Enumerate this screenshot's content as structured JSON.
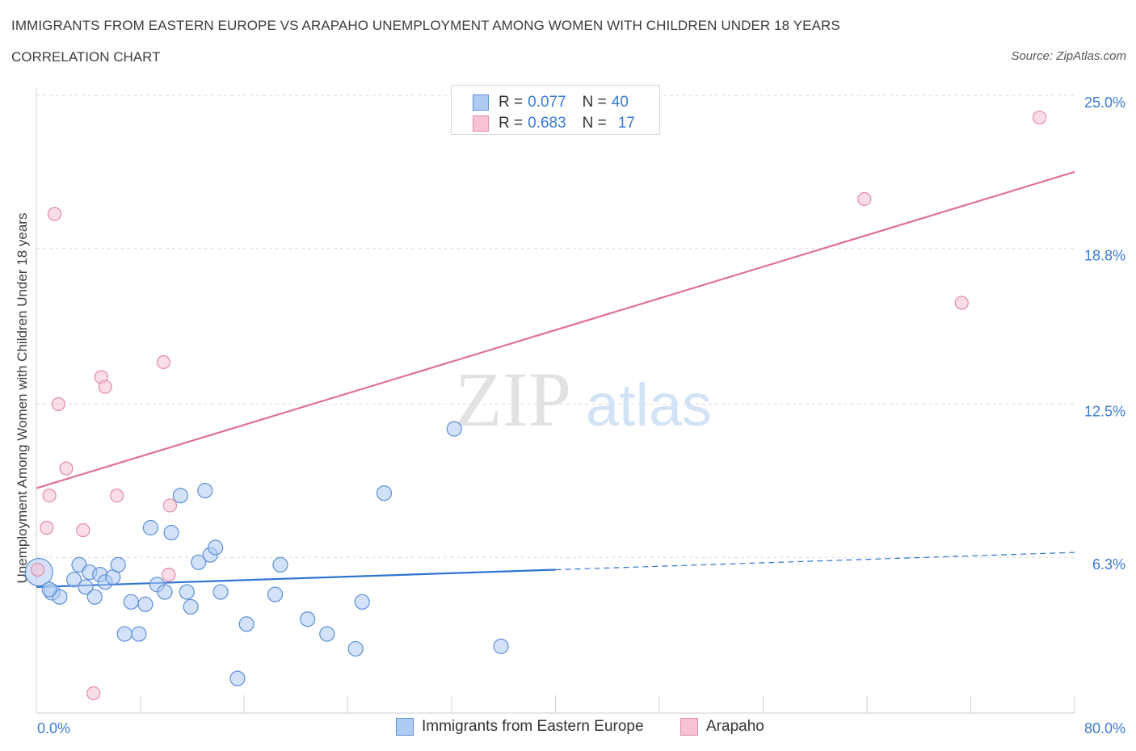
{
  "header": {
    "title": "IMMIGRANTS FROM EASTERN EUROPE VS ARAPAHO UNEMPLOYMENT AMONG WOMEN WITH CHILDREN UNDER 18 YEARS",
    "subtitle": "CORRELATION CHART",
    "source": "Source: ZipAtlas.com"
  },
  "legend": {
    "series1": {
      "r_label": "R =",
      "r_value": "0.077",
      "n_label": "N =",
      "n_value": "40"
    },
    "series2": {
      "r_label": "R =",
      "r_value": "0.683",
      "n_label": "N =",
      "n_value": "17"
    }
  },
  "colors": {
    "blue_fill": "#aecbf2",
    "blue_stroke": "#5b8fd6",
    "blue_line": "#2f74d0",
    "pink_fill": "#f6c3d3",
    "pink_stroke": "#e48aa8",
    "pink_line": "#e07099",
    "grid": "#dcdcdc",
    "tick_text": "#3a7bd5"
  },
  "watermark": {
    "zip": "ZIP",
    "atlas": "atlas"
  },
  "chart_data": {
    "type": "scatter",
    "title": "IMMIGRANTS FROM EASTERN EUROPE VS ARAPAHO UNEMPLOYMENT AMONG WOMEN WITH CHILDREN UNDER 18 YEARS",
    "xlabel": "",
    "ylabel": "Unemployment Among Women with Children Under 18 years",
    "xlim": [
      0,
      80
    ],
    "ylim": [
      0,
      25
    ],
    "x_tick_labels": [
      "0.0%",
      "80.0%"
    ],
    "y_ticks": [
      6.3,
      12.5,
      18.8,
      25.0
    ],
    "y_tick_labels": [
      "6.3%",
      "12.5%",
      "18.8%",
      "25.0%"
    ],
    "grid": true,
    "legend_position": "bottom",
    "series": [
      {
        "name": "Immigrants from Eastern Europe",
        "color": "#aecbf2",
        "points": [
          {
            "x": 0.2,
            "y": 5.7,
            "s": 17
          },
          {
            "x": 1.2,
            "y": 4.9,
            "s": 10
          },
          {
            "x": 1.8,
            "y": 4.7,
            "s": 9
          },
          {
            "x": 2.9,
            "y": 5.4,
            "s": 9
          },
          {
            "x": 3.3,
            "y": 6.0,
            "s": 9
          },
          {
            "x": 4.1,
            "y": 5.7,
            "s": 9
          },
          {
            "x": 3.8,
            "y": 5.1,
            "s": 9
          },
          {
            "x": 4.5,
            "y": 4.7,
            "s": 9
          },
          {
            "x": 4.9,
            "y": 5.6,
            "s": 9
          },
          {
            "x": 5.3,
            "y": 5.3,
            "s": 9
          },
          {
            "x": 5.9,
            "y": 5.5,
            "s": 9
          },
          {
            "x": 6.3,
            "y": 6.0,
            "s": 9
          },
          {
            "x": 6.8,
            "y": 3.2,
            "s": 9
          },
          {
            "x": 7.3,
            "y": 4.5,
            "s": 9
          },
          {
            "x": 7.9,
            "y": 3.2,
            "s": 9
          },
          {
            "x": 8.4,
            "y": 4.4,
            "s": 9
          },
          {
            "x": 8.8,
            "y": 7.5,
            "s": 9
          },
          {
            "x": 9.3,
            "y": 5.2,
            "s": 9
          },
          {
            "x": 9.9,
            "y": 4.9,
            "s": 9
          },
          {
            "x": 10.4,
            "y": 7.3,
            "s": 9
          },
          {
            "x": 11.1,
            "y": 8.8,
            "s": 9
          },
          {
            "x": 11.6,
            "y": 4.9,
            "s": 9
          },
          {
            "x": 11.9,
            "y": 4.3,
            "s": 9
          },
          {
            "x": 12.5,
            "y": 6.1,
            "s": 9
          },
          {
            "x": 13.0,
            "y": 9.0,
            "s": 9
          },
          {
            "x": 13.4,
            "y": 6.4,
            "s": 9
          },
          {
            "x": 13.8,
            "y": 6.7,
            "s": 9
          },
          {
            "x": 14.2,
            "y": 4.9,
            "s": 9
          },
          {
            "x": 15.5,
            "y": 1.4,
            "s": 9
          },
          {
            "x": 16.2,
            "y": 3.6,
            "s": 9
          },
          {
            "x": 18.4,
            "y": 4.8,
            "s": 9
          },
          {
            "x": 18.8,
            "y": 6.0,
            "s": 9
          },
          {
            "x": 20.9,
            "y": 3.8,
            "s": 9
          },
          {
            "x": 22.4,
            "y": 3.2,
            "s": 9
          },
          {
            "x": 24.6,
            "y": 2.6,
            "s": 9
          },
          {
            "x": 25.1,
            "y": 4.5,
            "s": 9
          },
          {
            "x": 26.8,
            "y": 8.9,
            "s": 9
          },
          {
            "x": 32.2,
            "y": 11.5,
            "s": 9
          },
          {
            "x": 35.8,
            "y": 2.7,
            "s": 9
          },
          {
            "x": 1.0,
            "y": 5.0,
            "s": 9
          }
        ],
        "trend": {
          "x": [
            0,
            40
          ],
          "y": [
            5.1,
            5.8
          ],
          "dashed_to": {
            "x": 80,
            "y": 6.5
          }
        }
      },
      {
        "name": "Arapaho",
        "color": "#f6c3d3",
        "points": [
          {
            "x": 0.1,
            "y": 5.8,
            "s": 8
          },
          {
            "x": 0.8,
            "y": 7.5,
            "s": 8
          },
          {
            "x": 1.0,
            "y": 8.8,
            "s": 8
          },
          {
            "x": 1.4,
            "y": 20.2,
            "s": 8
          },
          {
            "x": 1.7,
            "y": 12.5,
            "s": 8
          },
          {
            "x": 2.3,
            "y": 9.9,
            "s": 8
          },
          {
            "x": 3.6,
            "y": 7.4,
            "s": 8
          },
          {
            "x": 4.4,
            "y": 0.8,
            "s": 8
          },
          {
            "x": 5.0,
            "y": 13.6,
            "s": 8
          },
          {
            "x": 5.3,
            "y": 13.2,
            "s": 8
          },
          {
            "x": 6.2,
            "y": 8.8,
            "s": 8
          },
          {
            "x": 9.8,
            "y": 14.2,
            "s": 8
          },
          {
            "x": 10.3,
            "y": 8.4,
            "s": 8
          },
          {
            "x": 10.2,
            "y": 5.6,
            "s": 8
          },
          {
            "x": 63.8,
            "y": 20.8,
            "s": 8
          },
          {
            "x": 71.3,
            "y": 16.6,
            "s": 8
          },
          {
            "x": 77.3,
            "y": 24.1,
            "s": 8
          }
        ],
        "trend": {
          "x": [
            0,
            80
          ],
          "y": [
            9.1,
            21.9
          ]
        }
      }
    ]
  }
}
